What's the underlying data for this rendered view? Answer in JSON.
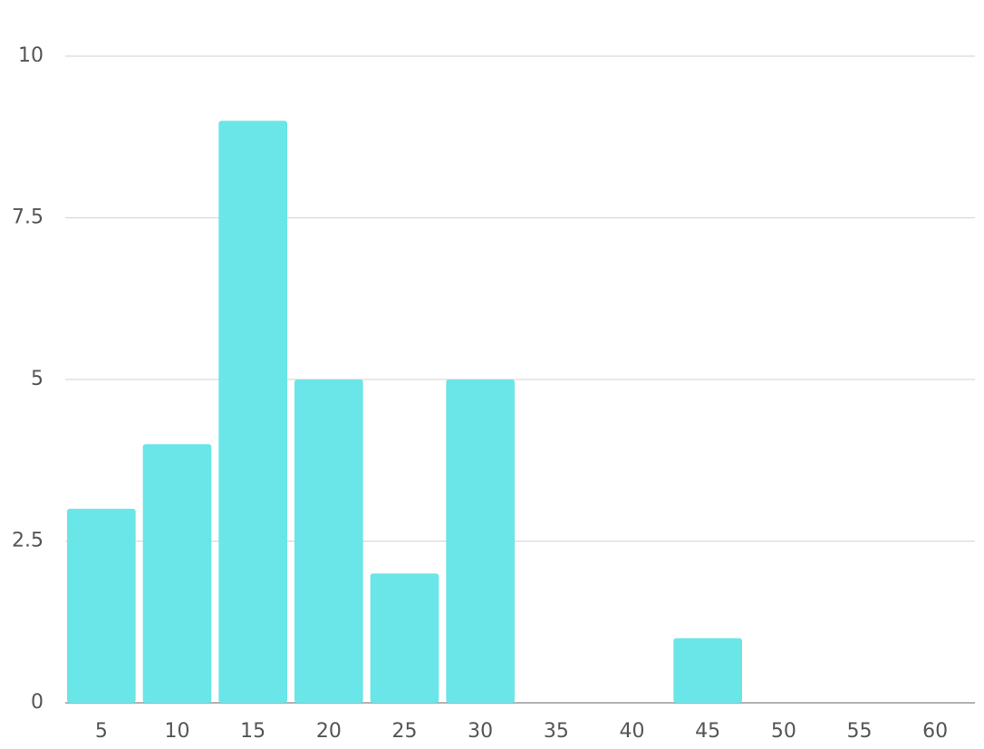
{
  "chart_data": {
    "type": "bar",
    "categories": [
      "5",
      "10",
      "15",
      "20",
      "25",
      "30",
      "35",
      "40",
      "45",
      "50",
      "55",
      "60"
    ],
    "values": [
      3,
      4,
      9,
      5,
      2,
      5,
      0,
      0,
      1,
      0,
      0,
      0
    ],
    "color": "#6ae5e8",
    "ylim": [
      0,
      10
    ],
    "yticks": [
      0,
      2.5,
      5,
      7.5,
      10
    ],
    "grid": true
  }
}
